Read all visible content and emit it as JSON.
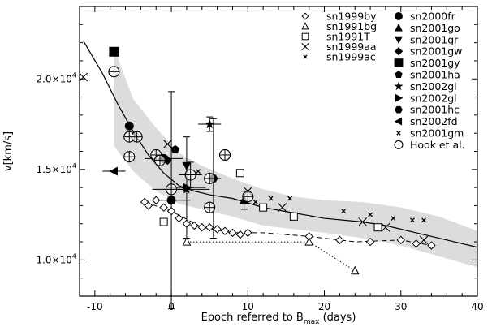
{
  "chart_data": {
    "type": "scatter",
    "title": "",
    "xlabel_main": "Epoch referred to B",
    "xlabel_sub": "max",
    "xlabel_unit": " (days)",
    "ylabel": "v[km/s]",
    "xlim": [
      -12,
      40
    ],
    "ylim": [
      8000,
      24000
    ],
    "xticks": [
      -10,
      0,
      10,
      20,
      30,
      40
    ],
    "xtick_labels": [
      "-10",
      "0",
      "10",
      "20",
      "30",
      "40"
    ],
    "yticks": [
      10000,
      15000,
      20000
    ],
    "ytick_mantissa": [
      "1.0",
      "1.5",
      "2.0"
    ],
    "ytick_exp": "4",
    "ytick_times": "×10",
    "legend_position": "top-right",
    "band": {
      "upper": [
        [
          -7.5,
          21700
        ],
        [
          -5,
          18900
        ],
        [
          -2,
          17300
        ],
        [
          1,
          15900
        ],
        [
          4,
          15200
        ],
        [
          8,
          14500
        ],
        [
          12,
          13900
        ],
        [
          16,
          13500
        ],
        [
          20,
          13300
        ],
        [
          25,
          13200
        ],
        [
          30,
          12900
        ],
        [
          35,
          12400
        ],
        [
          40,
          11600
        ]
      ],
      "lower": [
        [
          -7.5,
          16300
        ],
        [
          -5,
          14900
        ],
        [
          -2,
          13800
        ],
        [
          1,
          13100
        ],
        [
          4,
          12800
        ],
        [
          8,
          12400
        ],
        [
          12,
          11900
        ],
        [
          16,
          11700
        ],
        [
          20,
          11500
        ],
        [
          25,
          11200
        ],
        [
          30,
          10800
        ],
        [
          35,
          10200
        ],
        [
          40,
          9600
        ]
      ]
    },
    "fit_line": [
      [
        -11.5,
        22100
      ],
      [
        -9,
        20300
      ],
      [
        -7,
        18600
      ],
      [
        -5,
        17100
      ],
      [
        -3,
        15800
      ],
      [
        -1,
        14800
      ],
      [
        1,
        14100
      ],
      [
        3,
        13800
      ],
      [
        5,
        13600
      ],
      [
        8,
        13400
      ],
      [
        12,
        12900
      ],
      [
        16,
        12600
      ],
      [
        20,
        12300
      ],
      [
        25,
        12100
      ],
      [
        28,
        11900
      ],
      [
        32,
        11500
      ],
      [
        36,
        11100
      ],
      [
        40,
        10700
      ]
    ],
    "series": [
      {
        "name": "sn1999by",
        "marker": "diamond-open",
        "linestyle": "none",
        "points": [
          [
            -3.5,
            13200
          ],
          [
            -3,
            13000
          ],
          [
            -2,
            13300
          ],
          [
            -1,
            12900
          ],
          [
            0,
            12700
          ],
          [
            1,
            12300
          ],
          [
            2,
            12000
          ],
          [
            3,
            11900
          ],
          [
            4,
            11800
          ],
          [
            5,
            11800
          ],
          [
            6,
            11700
          ],
          [
            7,
            11600
          ],
          [
            8,
            11500
          ],
          [
            9,
            11400
          ],
          [
            10,
            11500
          ],
          [
            18,
            11300
          ],
          [
            22,
            11100
          ],
          [
            26,
            11000
          ],
          [
            30,
            11100
          ],
          [
            32,
            10900
          ],
          [
            34,
            10800
          ]
        ]
      },
      {
        "name": "sn1991bg",
        "marker": "triangle-open",
        "linestyle": "dotted",
        "points": [
          [
            2,
            11000
          ],
          [
            18,
            11000
          ],
          [
            24,
            9400
          ]
        ]
      },
      {
        "name": "sn1991T",
        "marker": "square-open",
        "linestyle": "none",
        "points": [
          [
            -1,
            12100
          ],
          [
            9,
            14800
          ],
          [
            12,
            12900
          ],
          [
            16,
            12400
          ],
          [
            27,
            11800
          ]
        ]
      },
      {
        "name": "sn1999aa",
        "marker": "x",
        "linestyle": "none",
        "points": [
          [
            -11.5,
            20100
          ],
          [
            -0.5,
            16400
          ],
          [
            10,
            13800
          ],
          [
            14.5,
            12900
          ],
          [
            25,
            12100
          ],
          [
            28,
            11800
          ],
          [
            33,
            11100
          ]
        ]
      },
      {
        "name": "sn1999ac",
        "marker": "small-x",
        "linestyle": "none",
        "points": [
          [
            11,
            13200
          ],
          [
            13,
            13400
          ],
          [
            15.5,
            13400
          ],
          [
            22.5,
            12700
          ],
          [
            26,
            12500
          ],
          [
            29,
            12300
          ],
          [
            31.5,
            12200
          ],
          [
            33,
            12200
          ]
        ]
      },
      {
        "name": "sn2000fr",
        "marker": "circle-filled",
        "linestyle": "none",
        "points": [
          [
            -5.5,
            17400
          ],
          [
            -1,
            15600
          ],
          [
            0,
            13300
          ]
        ]
      },
      {
        "name": "sn2001go",
        "marker": "triangle-filled",
        "linestyle": "none",
        "points": [
          [
            9.5,
            13300
          ]
        ]
      },
      {
        "name": "sn2001gr",
        "marker": "triangle-down-filled",
        "linestyle": "none",
        "points": [
          [
            2,
            15200
          ]
        ]
      },
      {
        "name": "sn2001gw",
        "marker": "diamond-filled",
        "linestyle": "none",
        "points": [
          [
            -0.5,
            15500
          ]
        ]
      },
      {
        "name": "sn2001gy",
        "marker": "square-filled",
        "linestyle": "none",
        "points": [
          [
            -7.5,
            21500
          ]
        ]
      },
      {
        "name": "sn2001ha",
        "marker": "pentagon-filled",
        "linestyle": "none",
        "points": [
          [
            0.5,
            16100
          ]
        ]
      },
      {
        "name": "sn2002gi",
        "marker": "star-filled",
        "linestyle": "none",
        "points": [
          [
            5,
            17500
          ],
          [
            2,
            13900
          ]
        ]
      },
      {
        "name": "sn2002gl",
        "marker": "triangle-right-filled",
        "linestyle": "none",
        "points": [
          [
            2,
            14000
          ]
        ]
      },
      {
        "name": "sn2001hc",
        "marker": "hexagon-filled",
        "linestyle": "none",
        "points": [
          [
            5.5,
            14500
          ]
        ]
      },
      {
        "name": "sn2002fd",
        "marker": "triangle-left-filled",
        "linestyle": "none",
        "points": [
          [
            -7.5,
            14900
          ]
        ]
      },
      {
        "name": "sn2001gm",
        "marker": "small-x",
        "linestyle": "none",
        "points": [
          [
            3.5,
            14900
          ]
        ]
      },
      {
        "name": "Hook et al.",
        "marker": "circle-crossed-open",
        "linestyle": "none",
        "points": [
          [
            -7.5,
            20400
          ],
          [
            -5.5,
            16800
          ],
          [
            -5.5,
            15700
          ],
          [
            -4.5,
            16800
          ],
          [
            -2,
            15800
          ],
          [
            -1.5,
            15500
          ],
          [
            0,
            13900
          ],
          [
            2.5,
            14700
          ],
          [
            5,
            12900
          ],
          [
            5,
            14500
          ],
          [
            7,
            15800
          ],
          [
            10,
            13500
          ]
        ]
      }
    ],
    "dashed_line": {
      "name": "sn1999by",
      "points": [
        [
          -3.5,
          13200
        ],
        [
          0,
          12700
        ],
        [
          4,
          11800
        ],
        [
          8,
          11500
        ],
        [
          12,
          11500
        ],
        [
          18,
          11300
        ],
        [
          24,
          11000
        ],
        [
          30,
          11100
        ],
        [
          34,
          10800
        ]
      ]
    },
    "errorbars": [
      {
        "x": -7.5,
        "y": 14900,
        "xerr": 1.5,
        "yerr": 0
      },
      {
        "x": -1,
        "y": 15600,
        "xerr": 2.5,
        "yerr": 0
      },
      {
        "x": 0,
        "y": 13300,
        "xerr": 2.5,
        "yerr": 6000
      },
      {
        "x": 0,
        "y": 13900,
        "xerr": 2.5,
        "yerr": 0
      },
      {
        "x": 2,
        "y": 14000,
        "xerr": 2.5,
        "yerr": 2800
      },
      {
        "x": 2,
        "y": 13900,
        "xerr": 3,
        "yerr": 0
      },
      {
        "x": 5,
        "y": 17500,
        "xerr": 1.5,
        "yerr": 400
      },
      {
        "x": 5.5,
        "y": 14500,
        "xerr": 1,
        "yerr": 3300
      },
      {
        "x": 9.5,
        "y": 13300,
        "xerr": 1,
        "yerr": 500
      },
      {
        "x": 2.5,
        "y": 14700,
        "xerr": 1.5,
        "yerr": 700
      }
    ]
  }
}
